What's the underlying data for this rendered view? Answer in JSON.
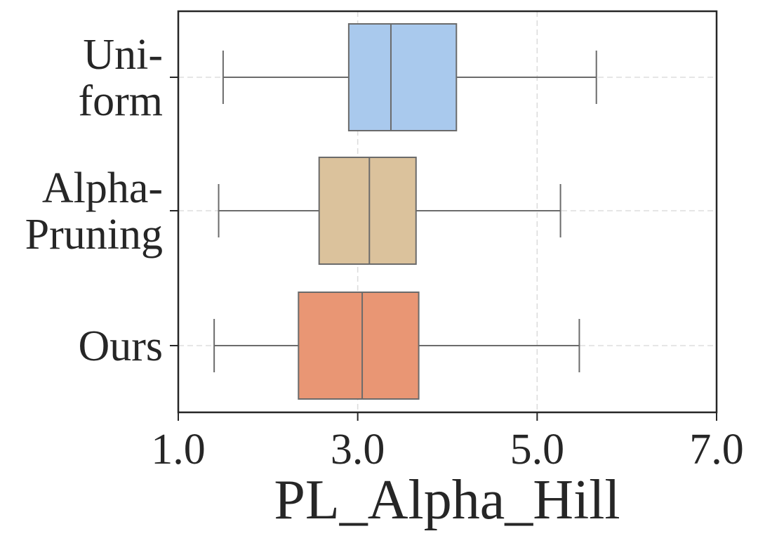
{
  "chart_data": {
    "type": "boxplot",
    "orientation": "horizontal",
    "xlabel": "PL_Alpha_Hill",
    "xlim": [
      1.0,
      7.0
    ],
    "xticks": [
      "1.0",
      "3.0",
      "5.0",
      "7.0"
    ],
    "xtick_values": [
      1.0,
      3.0,
      5.0,
      7.0
    ],
    "grid": true,
    "categories": [
      {
        "label_lines": [
          "Uni-",
          "form"
        ],
        "color": "#a9c9ed"
      },
      {
        "label_lines": [
          "Alpha-",
          "Pruning"
        ],
        "color": "#dbc29c"
      },
      {
        "label_lines": [
          "Ours"
        ],
        "color": "#e99674"
      }
    ],
    "boxes": [
      {
        "whisker_low": 1.5,
        "q1": 2.9,
        "median": 3.37,
        "q3": 4.1,
        "whisker_high": 5.66
      },
      {
        "whisker_low": 1.45,
        "q1": 2.57,
        "median": 3.13,
        "q3": 3.65,
        "whisker_high": 5.26
      },
      {
        "whisker_low": 1.4,
        "q1": 2.34,
        "median": 3.05,
        "q3": 3.68,
        "whisker_high": 5.47
      }
    ]
  }
}
